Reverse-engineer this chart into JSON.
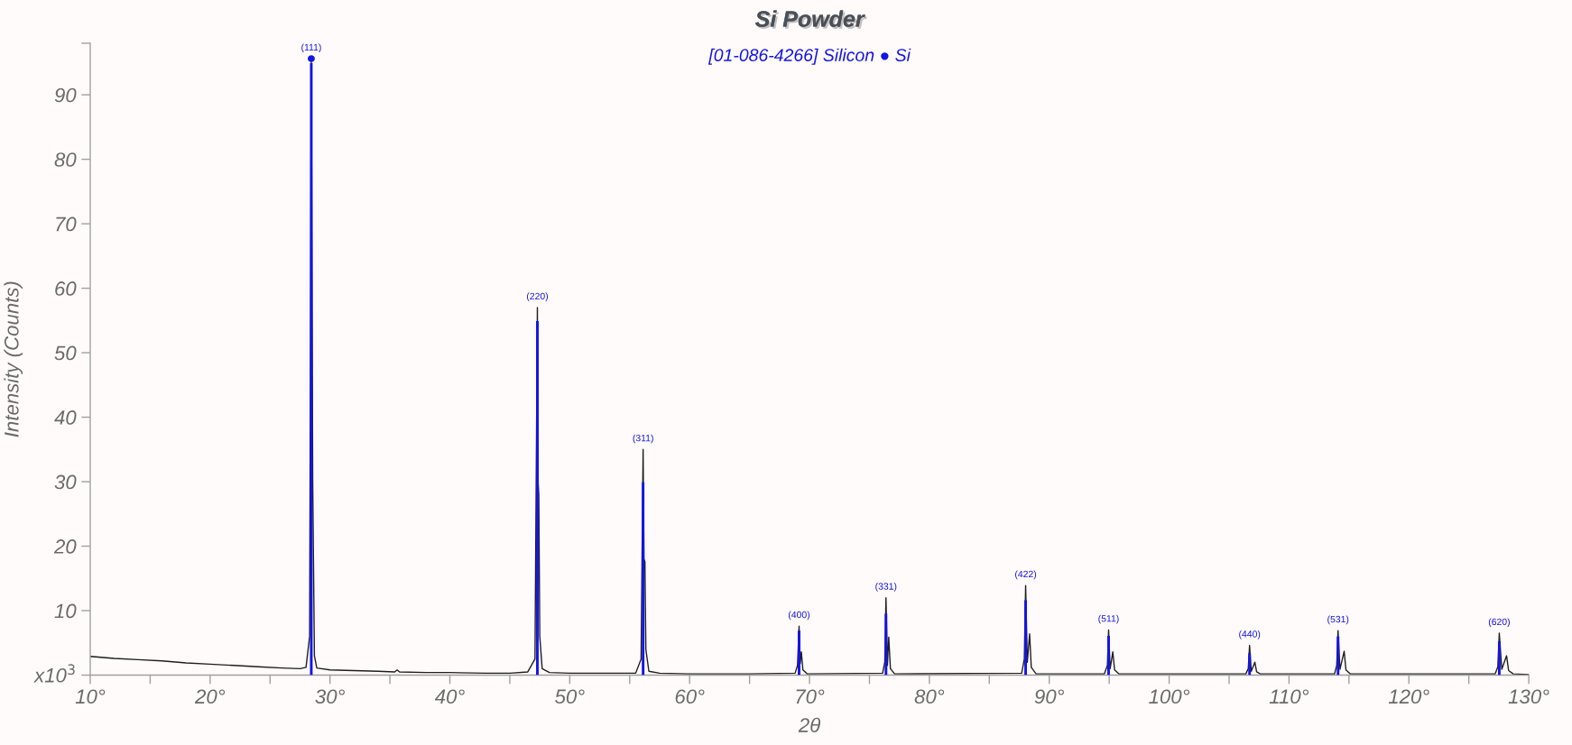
{
  "chart_data": {
    "type": "line",
    "title": "Si Powder",
    "subtitle": "[01-086-4266] Silicon ● Si",
    "xlabel": "2θ",
    "ylabel": "Intensity (Counts)",
    "xlim": [
      10,
      130
    ],
    "ylim": [
      0,
      98
    ],
    "xticks": [
      {
        "value": 10,
        "label": "10°"
      },
      {
        "value": 15,
        "label": null
      },
      {
        "value": 20,
        "label": "20°"
      },
      {
        "value": 25,
        "label": null
      },
      {
        "value": 30,
        "label": "30°"
      },
      {
        "value": 35,
        "label": null
      },
      {
        "value": 40,
        "label": "40°"
      },
      {
        "value": 45,
        "label": null
      },
      {
        "value": 50,
        "label": "50°"
      },
      {
        "value": 55,
        "label": null
      },
      {
        "value": 60,
        "label": "60°"
      },
      {
        "value": 65,
        "label": null
      },
      {
        "value": 70,
        "label": "70°"
      },
      {
        "value": 75,
        "label": null
      },
      {
        "value": 80,
        "label": "80°"
      },
      {
        "value": 85,
        "label": null
      },
      {
        "value": 90,
        "label": "90°"
      },
      {
        "value": 95,
        "label": null
      },
      {
        "value": 100,
        "label": "100°"
      },
      {
        "value": 105,
        "label": null
      },
      {
        "value": 110,
        "label": "110°"
      },
      {
        "value": 115,
        "label": null
      },
      {
        "value": 120,
        "label": "120°"
      },
      {
        "value": 125,
        "label": null
      },
      {
        "value": 130,
        "label": "130°"
      }
    ],
    "yticks": [
      {
        "value": 0,
        "label": "x10$^{3}$"
      },
      10,
      20,
      30,
      40,
      50,
      60,
      70,
      80,
      90,
      {
        "value": 98,
        "label": null
      }
    ],
    "grid": false,
    "series": [
      {
        "color": "#1e1e1e",
        "x": [
          10,
          12,
          14,
          16,
          18,
          20,
          22,
          24,
          26,
          27.5,
          28.0,
          28.3,
          28.44,
          28.56,
          28.7,
          28.9,
          30,
          32,
          34,
          35.4,
          35.6,
          35.8,
          38,
          40,
          43,
          45,
          46.5,
          47.1,
          47.3,
          47.36,
          47.42,
          47.5,
          47.7,
          48.3,
          50,
          53,
          55.5,
          55.95,
          56.12,
          56.19,
          56.27,
          56.35,
          56.6,
          57.5,
          60,
          65,
          68.8,
          69.0,
          69.13,
          69.23,
          69.32,
          69.45,
          69.8,
          76.1,
          76.28,
          76.38,
          76.5,
          76.61,
          76.75,
          77.1,
          87.7,
          87.92,
          88.03,
          88.17,
          88.36,
          88.5,
          88.9,
          94.6,
          94.85,
          94.95,
          95.08,
          95.3,
          95.45,
          95.8,
          106.4,
          106.6,
          106.71,
          106.85,
          107.15,
          107.3,
          107.6,
          113.8,
          113.98,
          114.09,
          114.25,
          114.6,
          114.75,
          115.1,
          127.2,
          127.42,
          127.54,
          127.75,
          128.15,
          128.32,
          128.7,
          130
        ],
        "values": [
          2.9,
          2.6,
          2.4,
          2.2,
          1.9,
          1.7,
          1.5,
          1.3,
          1.1,
          1.0,
          1.2,
          6,
          95,
          30,
          3,
          1.1,
          0.8,
          0.7,
          0.6,
          0.5,
          0.8,
          0.5,
          0.4,
          0.4,
          0.3,
          0.3,
          0.5,
          2.5,
          57,
          30,
          28,
          6,
          1.0,
          0.4,
          0.3,
          0.3,
          0.3,
          2.5,
          35,
          18,
          17.6,
          4,
          0.6,
          0.3,
          0.2,
          0.2,
          0.3,
          1.5,
          7.6,
          1.8,
          3.6,
          0.8,
          0.2,
          0.3,
          2,
          12,
          1.5,
          5.9,
          1.0,
          0.2,
          0.3,
          2.5,
          13.9,
          2.0,
          6.4,
          1.2,
          0.2,
          0.2,
          1.5,
          7.0,
          1.0,
          3.6,
          0.8,
          0.2,
          0.2,
          1,
          4.6,
          0.6,
          2.0,
          0.5,
          0.2,
          0.2,
          1.5,
          6.9,
          0.9,
          3.7,
          0.8,
          0.2,
          0.2,
          1.3,
          6.5,
          0.9,
          3.0,
          0.7,
          0.2,
          0.1
        ]
      },
      {
        "type": "bar",
        "color": "#1414e6",
        "x": [
          28.44,
          47.3,
          56.12,
          69.13,
          76.38,
          88.03,
          94.95,
          106.71,
          114.09,
          127.54
        ],
        "values": [
          94.9,
          54.9,
          29.9,
          6.9,
          9.5,
          11.6,
          6.1,
          3.4,
          6.0,
          5.2
        ]
      },
      {
        "type": "scatter",
        "color": "#1414e6",
        "marker": "circle",
        "x": [
          28.44
        ],
        "values": [
          95.6
        ]
      }
    ],
    "annotations": [
      {
        "text": "(111)",
        "x": 28.44,
        "y": 95.6
      },
      {
        "text": "(220)",
        "x": 47.3,
        "y": 57
      },
      {
        "text": "(311)",
        "x": 56.12,
        "y": 35
      },
      {
        "text": "(400)",
        "x": 69.13,
        "y": 7.6
      },
      {
        "text": "(331)",
        "x": 76.38,
        "y": 12
      },
      {
        "text": "(422)",
        "x": 88.03,
        "y": 13.9
      },
      {
        "text": "(511)",
        "x": 94.95,
        "y": 7
      },
      {
        "text": "(440)",
        "x": 106.71,
        "y": 4.6
      },
      {
        "text": "(531)",
        "x": 114.09,
        "y": 6.9
      },
      {
        "text": "(620)",
        "x": 127.54,
        "y": 6.5
      }
    ]
  }
}
